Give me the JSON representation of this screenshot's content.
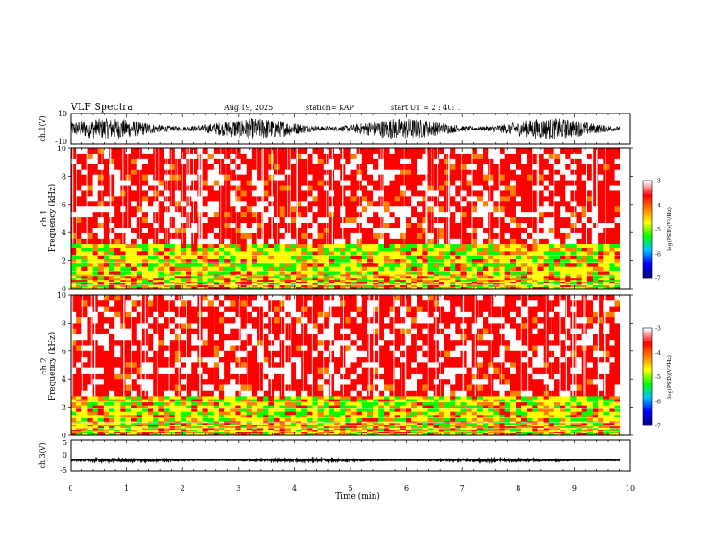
{
  "header": {
    "title": "VLF Spectra",
    "date": "Aug.19, 2025",
    "station": "station= KAP",
    "start": "start  UT =   2 : 40: 1"
  },
  "chart_data": {
    "type": "heatmap",
    "title": "VLF Spectra",
    "xlabel": "Time  (min)",
    "xlim": [
      0,
      10
    ],
    "xticks": [
      "0",
      "1",
      "2",
      "3",
      "4",
      "5",
      "6",
      "7",
      "8",
      "9",
      "10"
    ],
    "data_end_min": 9.82,
    "panels": [
      {
        "id": "ch1-waveform",
        "type": "line",
        "ylabel": "ch.1(V)",
        "ylim": [
          -10,
          10
        ],
        "yticks": [
          "10",
          "-10"
        ],
        "signal": {
          "mean": 0,
          "amplitude": 7,
          "color": "#000000"
        }
      },
      {
        "id": "ch1-spectrogram",
        "type": "heatmap",
        "ylabel_line1": "ch.1",
        "ylabel_line2": "Frequency  (kHz)",
        "ylim": [
          0,
          10
        ],
        "yticks": [
          "0",
          "2",
          "4",
          "6",
          "8",
          "10"
        ],
        "bands": [
          {
            "from_khz": 0,
            "to_khz": 1.0,
            "level": "mixed-green-yellow"
          },
          {
            "from_khz": 1.0,
            "to_khz": 3.2,
            "level": "green-yellow"
          },
          {
            "from_khz": 3.2,
            "to_khz": 10,
            "level": "red"
          }
        ],
        "colorbar": {
          "label": "log(PSD)(V²/Hz)",
          "min": -7,
          "max": -3,
          "ticks": [
            "-3",
            "-4",
            "-5",
            "-6",
            "-7"
          ]
        }
      },
      {
        "id": "ch2-spectrogram",
        "type": "heatmap",
        "ylabel_line1": "ch.2",
        "ylabel_line2": "Frequency  (kHz)",
        "ylim": [
          0,
          10
        ],
        "yticks": [
          "0",
          "2",
          "4",
          "6",
          "8",
          "10"
        ],
        "bands": [
          {
            "from_khz": 0,
            "to_khz": 1.0,
            "level": "mixed-green-yellow"
          },
          {
            "from_khz": 1.0,
            "to_khz": 2.8,
            "level": "green-yellow"
          },
          {
            "from_khz": 2.8,
            "to_khz": 10,
            "level": "red"
          }
        ],
        "colorbar": {
          "label": "log(PSD)(V²/Hz)",
          "min": -7,
          "max": -3,
          "ticks": [
            "-3",
            "-4",
            "-5",
            "-6",
            "-7"
          ]
        }
      },
      {
        "id": "ch3-waveform",
        "type": "line",
        "ylabel": "ch.3(V)",
        "ylim": [
          -5,
          5
        ],
        "yticks": [
          "5",
          "0",
          "-5"
        ],
        "signal": {
          "mean": -1.5,
          "amplitude": 0.4,
          "color": "#000000"
        }
      }
    ],
    "colormap": [
      "#000080",
      "#0000ff",
      "#00c0ff",
      "#00ff00",
      "#ffff00",
      "#ff8000",
      "#ff0000",
      "#ffffff"
    ]
  }
}
